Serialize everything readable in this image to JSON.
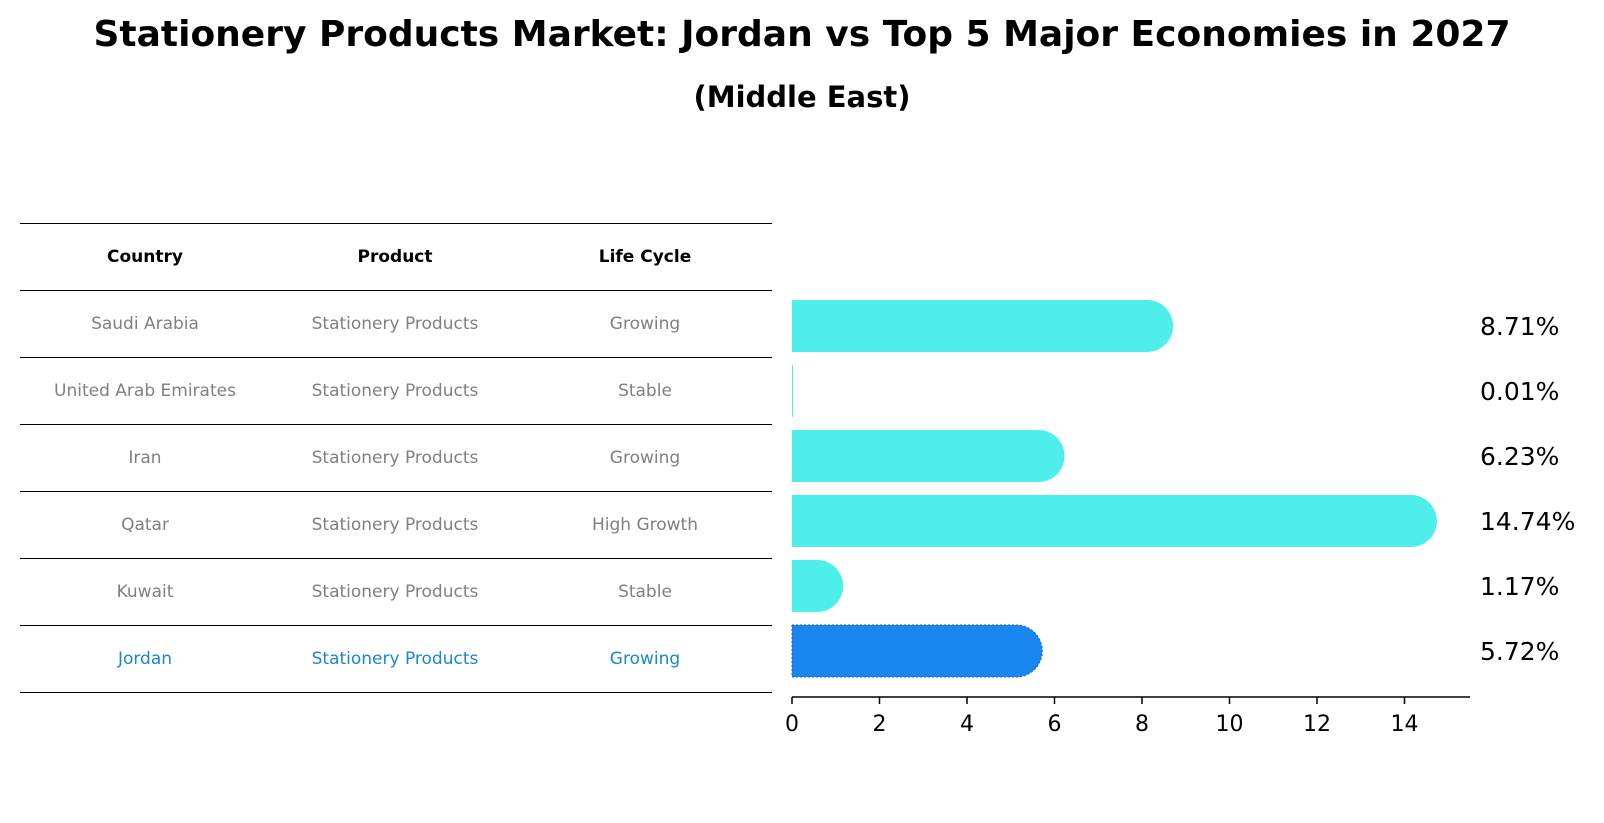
{
  "title": "Stationery Products Market: Jordan vs Top 5 Major Economies in 2027",
  "subtitle": "(Middle East)",
  "table": {
    "headers": [
      "Country",
      "Product",
      "Life Cycle"
    ],
    "rows": [
      {
        "country": "Saudi Arabia",
        "product": "Stationery Products",
        "life_cycle": "Growing"
      },
      {
        "country": "United Arab Emirates",
        "product": "Stationery Products",
        "life_cycle": "Stable"
      },
      {
        "country": "Iran",
        "product": "Stationery Products",
        "life_cycle": "Growing"
      },
      {
        "country": "Qatar",
        "product": "Stationery Products",
        "life_cycle": "High Growth"
      },
      {
        "country": "Kuwait",
        "product": "Stationery Products",
        "life_cycle": "Stable"
      },
      {
        "country": "Jordan",
        "product": "Stationery Products",
        "life_cycle": "Growing"
      }
    ]
  },
  "colors": {
    "bar": "#4EEEEA",
    "highlight_bar": "#1A86F0",
    "highlight_text": "#1A86D0",
    "row_text": "#808080"
  },
  "chart_data": {
    "type": "bar",
    "orientation": "horizontal",
    "categories": [
      "Saudi Arabia",
      "United Arab Emirates",
      "Iran",
      "Qatar",
      "Kuwait",
      "Jordan"
    ],
    "values": [
      8.71,
      0.01,
      6.23,
      14.74,
      1.17,
      5.72
    ],
    "value_labels": [
      "8.71%",
      "0.01%",
      "6.23%",
      "14.74%",
      "1.17%",
      "5.72%"
    ],
    "highlight": "Jordan",
    "xlim": [
      0,
      15.5
    ],
    "xticks": [
      0,
      2,
      4,
      6,
      8,
      10,
      12,
      14
    ],
    "grid": false
  }
}
